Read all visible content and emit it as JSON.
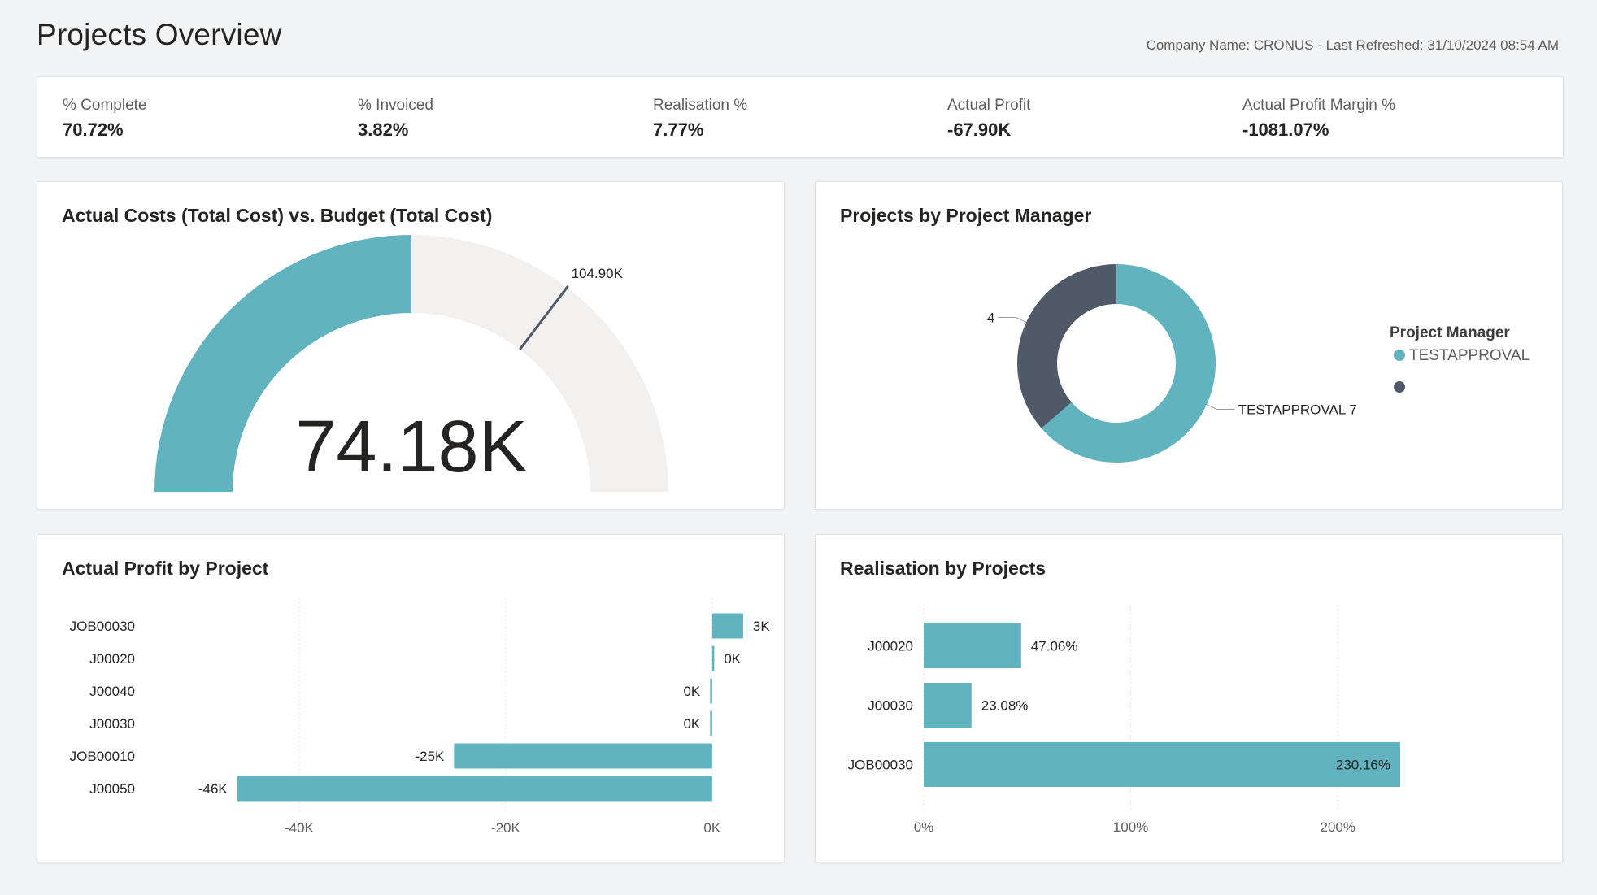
{
  "header": {
    "title": "Projects Overview",
    "company_info": "Company Name: CRONUS - Last Refreshed: 31/10/2024 08:54 AM"
  },
  "kpis": [
    {
      "label": "% Complete",
      "value": "70.72%"
    },
    {
      "label": "% Invoiced",
      "value": "3.82%"
    },
    {
      "label": "Realisation %",
      "value": "7.77%"
    },
    {
      "label": "Actual Profit",
      "value": "-67.90K"
    },
    {
      "label": "Actual Profit Margin %",
      "value": "-1081.07%"
    }
  ],
  "colors": {
    "teal": "#60b3bf",
    "dark": "#505967",
    "track": "#f2f1f0",
    "text": "#252423",
    "muted": "#605e5c",
    "grid": "#e6e6e6"
  },
  "gauge": {
    "title": "Actual Costs (Total Cost) vs. Budget (Total Cost)",
    "chart_data": {
      "type": "gauge",
      "value": 74.18,
      "value_label": "74.18K",
      "target": 104.9,
      "target_label": "104.90K",
      "min": 0,
      "max": 148.36
    }
  },
  "donut": {
    "title": "Projects by Project Manager",
    "legend_title": "Project Manager",
    "chart_data": {
      "type": "pie",
      "series": [
        {
          "name": "TESTAPPROVAL",
          "value": 7,
          "label": "TESTAPPROVAL 7",
          "color": "#60b3bf"
        },
        {
          "name": "",
          "value": 4,
          "label": "4",
          "color": "#505967"
        }
      ]
    }
  },
  "profit": {
    "title": "Actual Profit by Project",
    "chart_data": {
      "type": "bar",
      "orientation": "horizontal",
      "categories": [
        "JOB00030",
        "J00020",
        "J00040",
        "J00030",
        "JOB00010",
        "J00050"
      ],
      "values": [
        3,
        0.2,
        -0.2,
        -0.2,
        -25,
        -46
      ],
      "data_labels": [
        "3K",
        "0K",
        "0K",
        "0K",
        "-25K",
        "-46K"
      ],
      "x_ticks": [
        -40,
        -20,
        0
      ],
      "x_tick_labels": [
        "-40K",
        "-20K",
        "0K"
      ],
      "xlim": [
        -60,
        6
      ],
      "grid": true
    }
  },
  "realisation": {
    "title": "Realisation by Projects",
    "chart_data": {
      "type": "bar",
      "orientation": "horizontal",
      "categories": [
        "J00020",
        "J00030",
        "JOB00030"
      ],
      "values": [
        47.06,
        23.08,
        230.16
      ],
      "data_labels": [
        "47.06%",
        "23.08%",
        "230.16%"
      ],
      "x_ticks": [
        0,
        100,
        200
      ],
      "x_tick_labels": [
        "0%",
        "100%",
        "200%"
      ],
      "xlim": [
        0,
        260
      ],
      "grid": true
    }
  }
}
